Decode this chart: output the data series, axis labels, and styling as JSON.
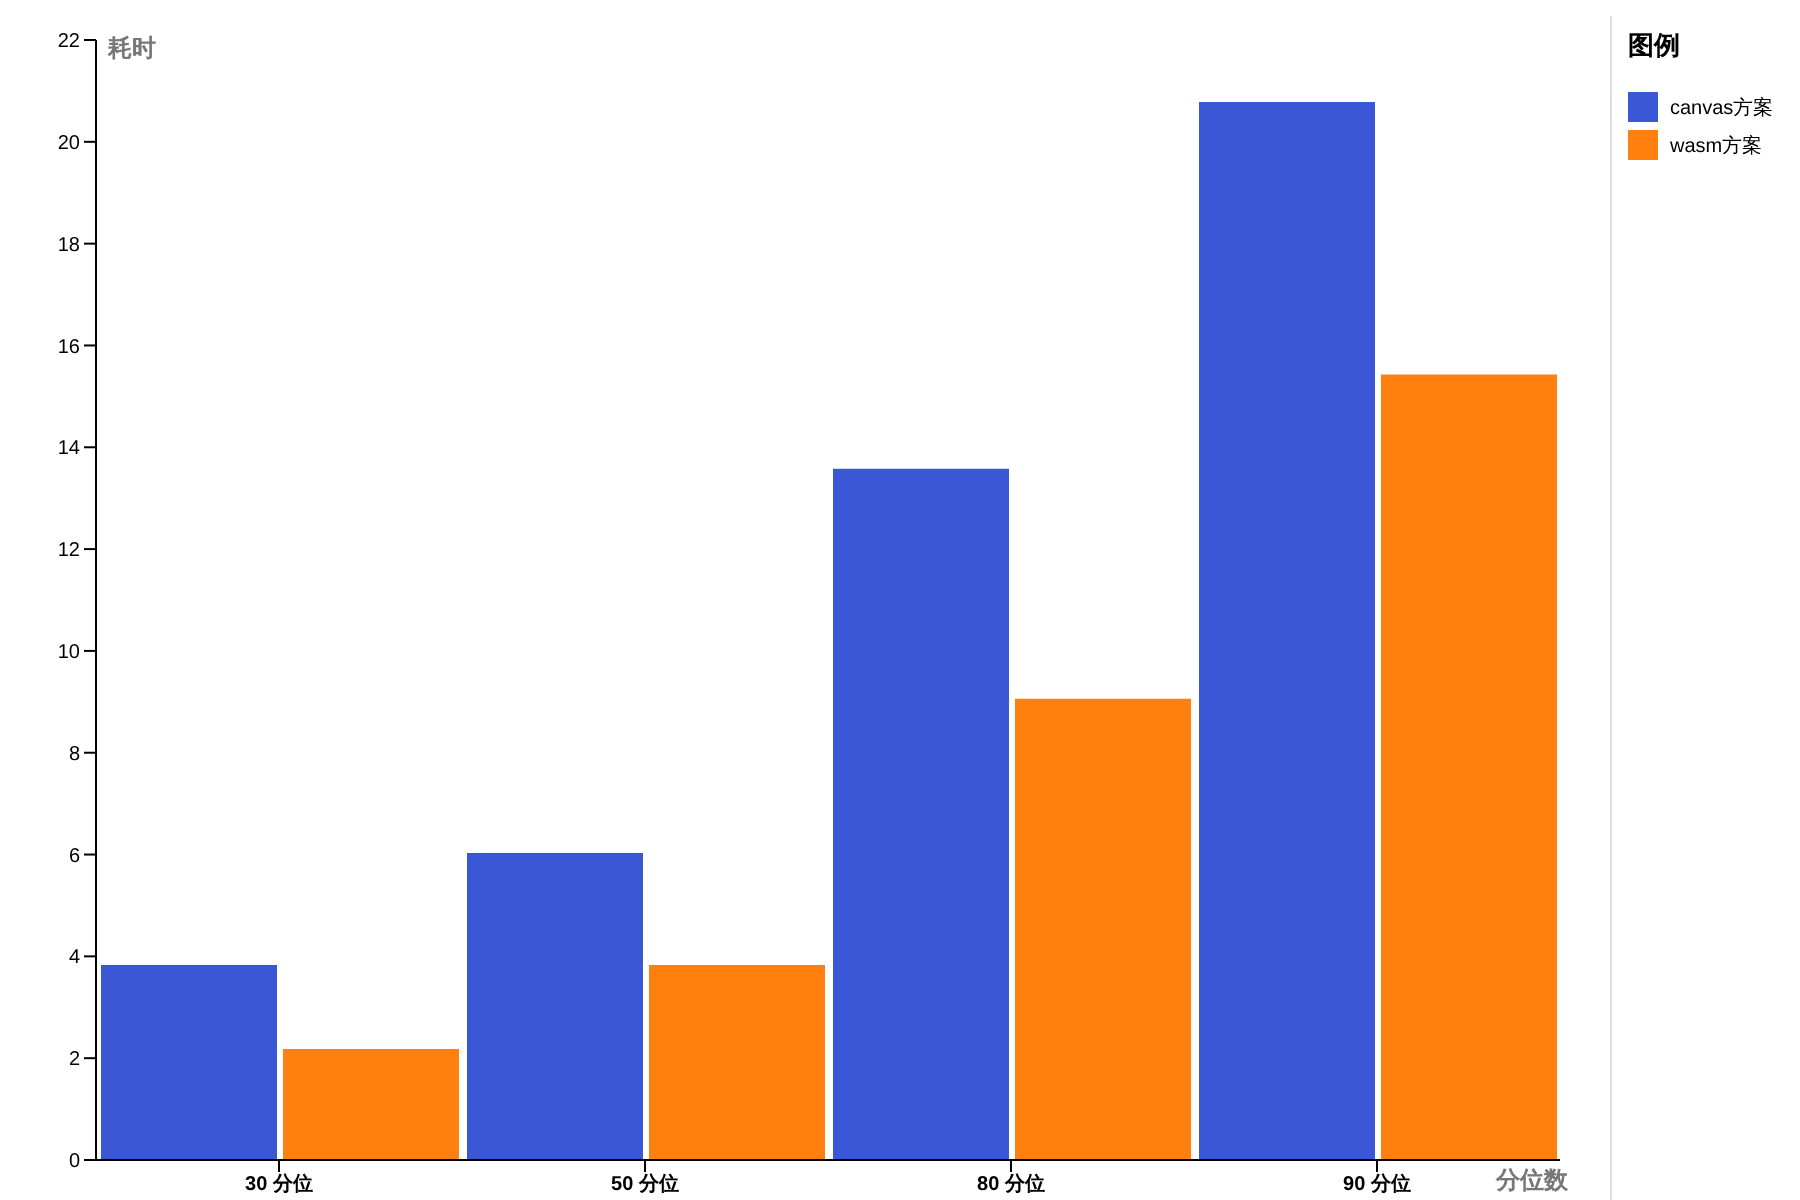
{
  "chart_data": {
    "type": "bar",
    "xlabel": "分位数",
    "ylabel": "耗时",
    "legend_title": "图例",
    "legend": "top right",
    "grid": false,
    "categories": [
      "30 分位",
      "50 分位",
      "80 分位",
      "90 分位"
    ],
    "series": [
      {
        "name": "canvas方案",
        "color": "#3a57d5",
        "values": [
          3.85,
          6.05,
          13.6,
          20.8
        ]
      },
      {
        "name": "wasm方案",
        "color": "#ff800e",
        "values": [
          2.2,
          3.85,
          9.08,
          15.45
        ]
      }
    ],
    "ylim": [
      0,
      22
    ],
    "yticks": [
      0,
      2,
      4,
      6,
      8,
      10,
      12,
      14,
      16,
      18,
      20,
      22
    ]
  }
}
